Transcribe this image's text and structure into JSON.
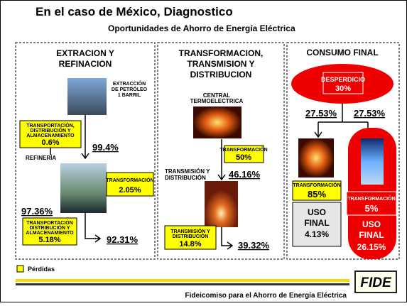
{
  "header": {
    "title": "En el caso de México, Diagnostico",
    "subtitle": "Oportunidades de Ahorro de Energía Eléctrica"
  },
  "panels": [
    {
      "heading": [
        "EXTRACION Y",
        "REFINACION"
      ],
      "source_label": [
        "EXTRACCIÓN",
        "DE PETRÓLEO",
        "1 BARRIL"
      ],
      "loss1": {
        "label": [
          "TRANSPORTACIÓN,",
          "DISTRIBUCIÓN Y",
          "ALMACENAMIENTO"
        ],
        "value": "0.6%"
      },
      "remaining1": "99.4%",
      "stage_label": "REFINERÍA",
      "loss2": {
        "label": [
          "TRANSFORMACIÓN"
        ],
        "value": "2.05%"
      },
      "remaining2": "97.36%",
      "loss3": {
        "label": [
          "TRANSPORTACIÓN",
          "DISTRIBUCIÓN  Y",
          "ALMACENAMIENTO"
        ],
        "value": "5.18%"
      },
      "remaining3": "92.31%"
    },
    {
      "heading": [
        "TRANSFORMACION,",
        "TRANSMISION Y",
        "DISTRIBUCION"
      ],
      "source_label": [
        "CENTRAL",
        "TERMOELECTRICA"
      ],
      "loss1": {
        "label": [
          "TRANSFORMACIÓN"
        ],
        "value": "50%"
      },
      "stage_label": [
        "TRANSMISIÓN  Y",
        "DISTRIBUCIÓN"
      ],
      "remaining1": "46.16%",
      "loss2": {
        "label": [
          "TRANSMISIÓN Y",
          "DISTRIBUCIÓN"
        ],
        "value": "14.8%"
      },
      "remaining2": "39.32%"
    },
    {
      "heading": [
        "CONSUMO FINAL"
      ],
      "waste": {
        "label": "DESPERDICIO",
        "value": "30%"
      },
      "split": [
        "27.53%",
        "27.53%"
      ],
      "left": {
        "loss_label": "TRANSFORMACIÓN",
        "loss": "85%",
        "use_label": [
          "USO",
          "FINAL"
        ],
        "use": "4.13%"
      },
      "right": {
        "loss_label": "TRANSFORMACIÓN",
        "loss": "5%",
        "use_label": [
          "USO",
          "FINAL"
        ],
        "use": "26.15%"
      }
    }
  ],
  "legend": "Pérdidas",
  "footer": {
    "text": "Fideicomiso para el Ahorro de Energía Eléctrica",
    "logo": "FIDE"
  }
}
